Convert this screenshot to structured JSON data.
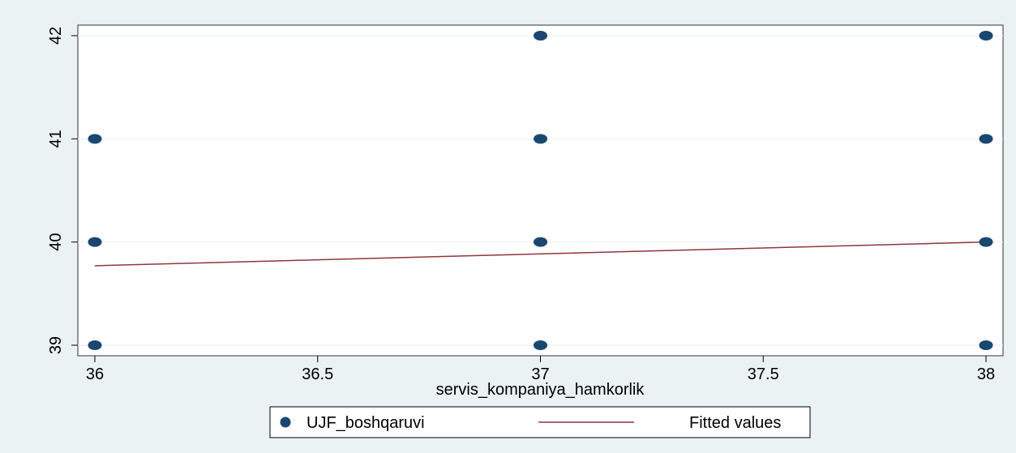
{
  "chart_data": {
    "type": "scatter",
    "title": "",
    "xlabel": "servis_kompaniya_hamkorlik",
    "ylabel": "",
    "xlim": [
      36,
      38
    ],
    "ylim": [
      39,
      42
    ],
    "x_ticks": [
      "36",
      "36.5",
      "37",
      "37.5",
      "38"
    ],
    "y_ticks": [
      "39",
      "40",
      "41",
      "42"
    ],
    "grid": "horizontal",
    "legend_position": "bottom",
    "series": [
      {
        "name": "UJF_boshqaruvi",
        "kind": "scatter",
        "color": "#1a476f",
        "points": [
          {
            "x": 36,
            "y": 39
          },
          {
            "x": 36,
            "y": 40
          },
          {
            "x": 36,
            "y": 41
          },
          {
            "x": 37,
            "y": 39
          },
          {
            "x": 37,
            "y": 40
          },
          {
            "x": 37,
            "y": 41
          },
          {
            "x": 37,
            "y": 42
          },
          {
            "x": 38,
            "y": 39
          },
          {
            "x": 38,
            "y": 40
          },
          {
            "x": 38,
            "y": 41
          },
          {
            "x": 38,
            "y": 42
          }
        ]
      },
      {
        "name": "Fitted values",
        "kind": "line",
        "color": "#90353b",
        "points": [
          {
            "x": 36,
            "y": 39.77
          },
          {
            "x": 38,
            "y": 40.0
          }
        ]
      }
    ]
  },
  "legend": {
    "items": [
      "UJF_boshqaruvi",
      "Fitted values"
    ]
  }
}
